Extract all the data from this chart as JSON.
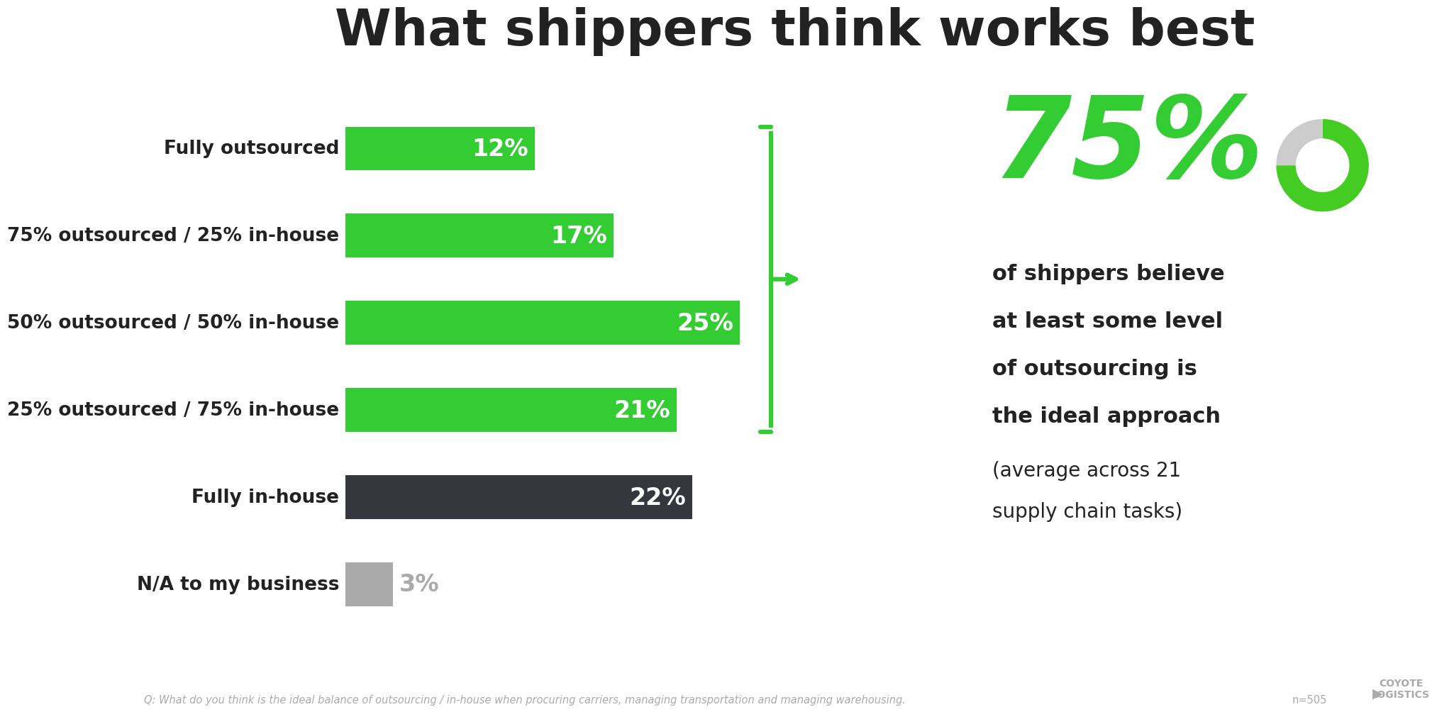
{
  "title": "What shippers think works best",
  "categories": [
    "Fully outsourced",
    "75% outsourced / 25% in-house",
    "50% outsourced / 50% in-house",
    "25% outsourced / 75% in-house",
    "Fully in-house",
    "N/A to my business"
  ],
  "values": [
    12,
    17,
    25,
    21,
    22,
    3
  ],
  "bar_colors": [
    "#33cc33",
    "#33cc33",
    "#33cc33",
    "#33cc33",
    "#36363f",
    "#aaaaaa"
  ],
  "green_color": "#33cc33",
  "dark_color": "#36363f",
  "gray_color": "#aaaaaa",
  "text_color": "#222222",
  "bg_color": "#ffffff",
  "title_fontsize": 52,
  "bar_label_fontsize": 24,
  "cat_label_fontsize": 19,
  "right_big_pct": "75%",
  "right_text_line1": "of shippers believe",
  "right_text_line2": "at least some level",
  "right_text_line3": "of outsourcing is",
  "right_text_line4": "the ideal approach",
  "right_text_line5": "(average across 21",
  "right_text_line6": "supply chain tasks)",
  "footnote": "Q: What do you think is the ideal balance of outsourcing / in-house when procuring carriers, managing transportation and managing warehousing.",
  "n_label": "n=505"
}
